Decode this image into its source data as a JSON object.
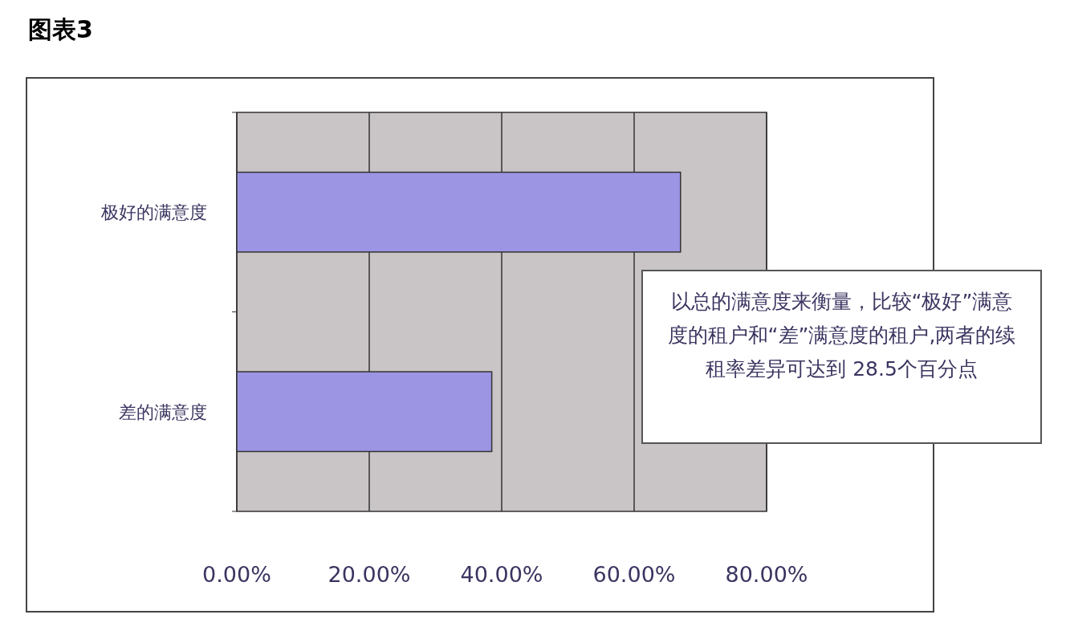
{
  "chart_data": {
    "type": "bar",
    "orientation": "horizontal",
    "title": "图表3",
    "categories": [
      "极好的满意度",
      "差的满意度"
    ],
    "values": [
      67,
      38.5
    ],
    "color": "#9c95e3",
    "xlim": [
      0,
      80
    ],
    "xticks": [
      {
        "value": 0,
        "label": "0.00%"
      },
      {
        "value": 20,
        "label": "20.00%"
      },
      {
        "value": 40,
        "label": "40.00%"
      },
      {
        "value": 60,
        "label": "60.00%"
      },
      {
        "value": 80,
        "label": "80.00%"
      }
    ],
    "grid": "x",
    "annotations": [
      "以总的满意度来衡量，比较“极好”满意度的租户和“差”满意度的租户,两者的续租率差异可达到 28.5个百分点"
    ]
  }
}
